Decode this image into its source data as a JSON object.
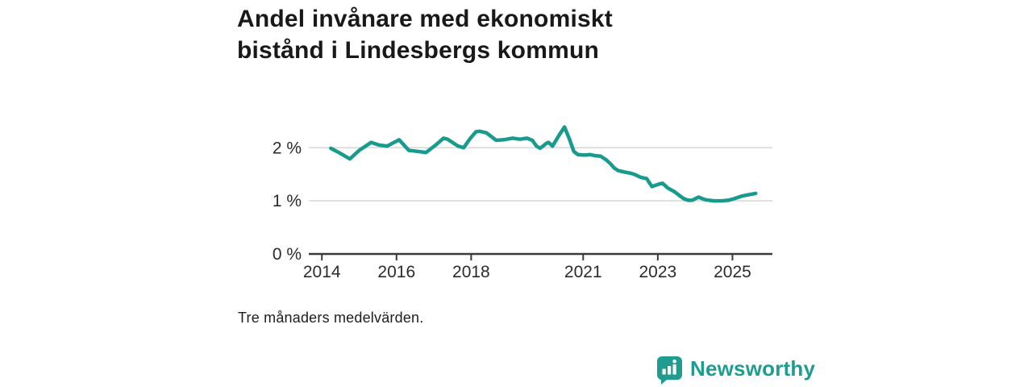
{
  "header": {
    "title_line1": "Andel invånare med ekonomiskt",
    "title_line2": "bistånd i Lindesbergs kommun"
  },
  "footnote": "Tre månaders medelvärden.",
  "branding": {
    "name": "Newsworthy",
    "icon": "newsworthy-bar-chart-bubble-icon",
    "color": "#1e9c8f"
  },
  "colors": {
    "line": "#189a8d",
    "gridline": "#d9d9d9",
    "axis": "#3a3a3a",
    "tick_label": "#2b2b2b",
    "background": "#ffffff"
  },
  "chart_data": {
    "type": "line",
    "title": "Andel invånare med ekonomiskt bistånd i Lindesbergs kommun",
    "xlabel": "",
    "ylabel": "",
    "grid": "horizontal",
    "legend": "none",
    "xlim": [
      2013.65,
      2026.07
    ],
    "ylim": [
      0,
      2.58
    ],
    "x_ticks": [
      {
        "value": 2014,
        "label": "2014"
      },
      {
        "value": 2016,
        "label": "2016"
      },
      {
        "value": 2018,
        "label": "2018"
      },
      {
        "value": 2021,
        "label": "2021"
      },
      {
        "value": 2023,
        "label": "2023"
      },
      {
        "value": 2025,
        "label": "2025"
      }
    ],
    "y_ticks": [
      {
        "value": 0,
        "label": "0 %"
      },
      {
        "value": 1,
        "label": "1 %"
      },
      {
        "value": 2,
        "label": "2 %"
      }
    ],
    "series": [
      {
        "name": "Andel invånare med ekonomiskt bistånd",
        "unit": "%",
        "points": [
          [
            2014.24,
            1.99
          ],
          [
            2014.48,
            1.9
          ],
          [
            2014.75,
            1.79
          ],
          [
            2015.0,
            1.95
          ],
          [
            2015.32,
            2.1
          ],
          [
            2015.53,
            2.05
          ],
          [
            2015.75,
            2.03
          ],
          [
            2016.07,
            2.15
          ],
          [
            2016.33,
            1.95
          ],
          [
            2016.57,
            1.93
          ],
          [
            2016.79,
            1.91
          ],
          [
            2017.05,
            2.05
          ],
          [
            2017.26,
            2.18
          ],
          [
            2017.37,
            2.16
          ],
          [
            2017.65,
            2.03
          ],
          [
            2017.8,
            2.0
          ],
          [
            2017.97,
            2.17
          ],
          [
            2018.13,
            2.3
          ],
          [
            2018.23,
            2.31
          ],
          [
            2018.41,
            2.28
          ],
          [
            2018.67,
            2.14
          ],
          [
            2018.88,
            2.15
          ],
          [
            2019.1,
            2.18
          ],
          [
            2019.31,
            2.16
          ],
          [
            2019.49,
            2.18
          ],
          [
            2019.64,
            2.14
          ],
          [
            2019.75,
            2.03
          ],
          [
            2019.85,
            1.99
          ],
          [
            2020.03,
            2.09
          ],
          [
            2020.07,
            2.1
          ],
          [
            2020.18,
            2.03
          ],
          [
            2020.35,
            2.23
          ],
          [
            2020.5,
            2.39
          ],
          [
            2020.63,
            2.17
          ],
          [
            2020.75,
            1.93
          ],
          [
            2020.86,
            1.87
          ],
          [
            2021.04,
            1.86
          ],
          [
            2021.19,
            1.87
          ],
          [
            2021.32,
            1.85
          ],
          [
            2021.47,
            1.84
          ],
          [
            2021.62,
            1.77
          ],
          [
            2021.73,
            1.7
          ],
          [
            2021.83,
            1.62
          ],
          [
            2021.94,
            1.57
          ],
          [
            2022.12,
            1.54
          ],
          [
            2022.27,
            1.52
          ],
          [
            2022.4,
            1.49
          ],
          [
            2022.55,
            1.44
          ],
          [
            2022.7,
            1.42
          ],
          [
            2022.84,
            1.27
          ],
          [
            2023.06,
            1.32
          ],
          [
            2023.13,
            1.33
          ],
          [
            2023.27,
            1.24
          ],
          [
            2023.45,
            1.17
          ],
          [
            2023.6,
            1.09
          ],
          [
            2023.7,
            1.04
          ],
          [
            2023.81,
            1.01
          ],
          [
            2023.92,
            1.01
          ],
          [
            2024.09,
            1.07
          ],
          [
            2024.28,
            1.02
          ],
          [
            2024.5,
            1.0
          ],
          [
            2024.71,
            1.0
          ],
          [
            2024.89,
            1.01
          ],
          [
            2025.04,
            1.04
          ],
          [
            2025.25,
            1.09
          ],
          [
            2025.47,
            1.12
          ],
          [
            2025.62,
            1.14
          ]
        ]
      }
    ],
    "note": "Tre månaders medelvärden."
  }
}
